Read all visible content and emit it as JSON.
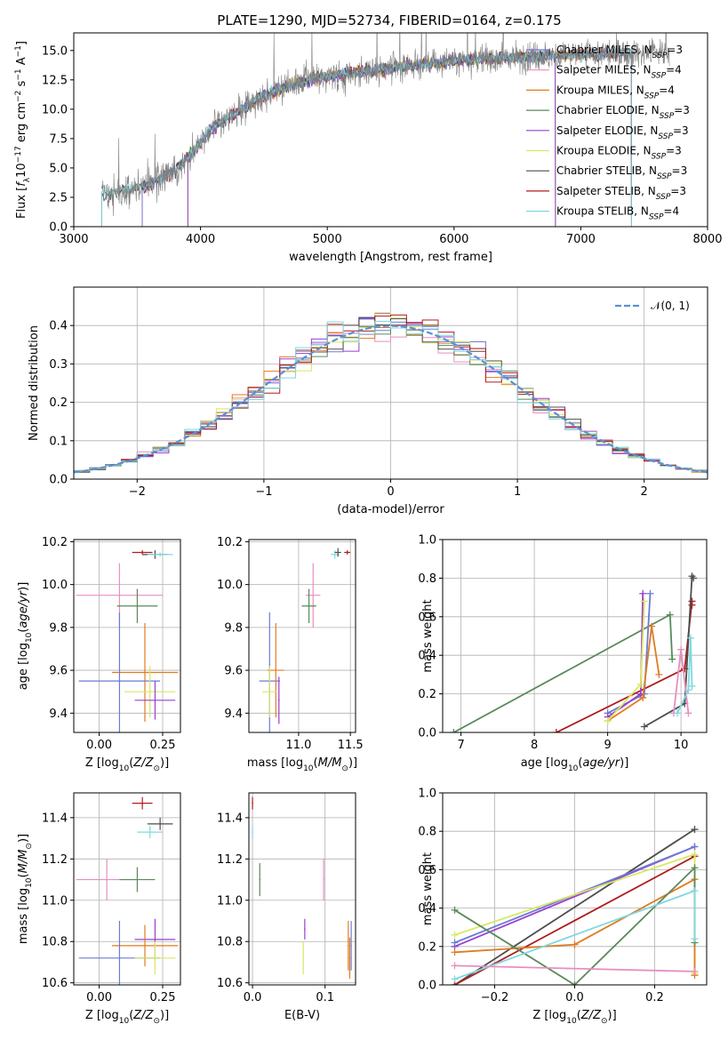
{
  "figure": {
    "title": "PLATE=1290, MJD=52734, FIBERID=0164, z=0.175"
  },
  "colors": {
    "Chabrier MILES": "#6a7bd6",
    "Salpeter MILES": "#e88ec0",
    "Kroupa MILES": "#e07b20",
    "Chabrier ELODIE": "#5a8a5a",
    "Salpeter ELODIE": "#9a3fcf",
    "Kroupa ELODIE": "#d8e860",
    "Chabrier STELIB": "#4d4d4d",
    "Salpeter STELIB": "#b01c1c",
    "Kroupa STELIB": "#7fd8e0",
    "data": "#808080",
    "normal_curve": "#5b8fd6",
    "grid": "#b0b0b0"
  },
  "chart_data": [
    {
      "id": "spectrum",
      "type": "line",
      "title": "PLATE=1290, MJD=52734, FIBERID=0164, z=0.175",
      "xlabel": "wavelength [Angstrom, rest frame]",
      "ylabel": "Flux [f_λ 10^-17 erg cm^-2 s^-1 A^-1]",
      "xlim": [
        3000,
        8000
      ],
      "ylim": [
        0,
        16.5
      ],
      "xticks": [
        3000,
        4000,
        5000,
        6000,
        7000,
        8000
      ],
      "yticks": [
        0.0,
        2.5,
        5.0,
        7.5,
        10.0,
        12.5,
        15.0
      ],
      "ytick_labels": [
        "0.0",
        "2.5",
        "5.0",
        "7.5",
        "10.0",
        "12.5",
        "15.0"
      ],
      "grid": false,
      "legend_position": "top-right",
      "legend": [
        {
          "sps": "Chabrier MILES",
          "n": "3"
        },
        {
          "sps": "Salpeter MILES",
          "n": "4"
        },
        {
          "sps": "Kroupa MILES",
          "n": "4"
        },
        {
          "sps": "Chabrier ELODIE",
          "n": "3"
        },
        {
          "sps": "Salpeter ELODIE",
          "n": "3"
        },
        {
          "sps": "Kroupa ELODIE",
          "n": "3"
        },
        {
          "sps": "Chabrier STELIB",
          "n": "3"
        },
        {
          "sps": "Salpeter STELIB",
          "n": "3"
        },
        {
          "sps": "Kroupa STELIB",
          "n": "4"
        }
      ],
      "continuum": {
        "x": [
          3220,
          3400,
          3600,
          3800,
          3950,
          4100,
          4300,
          4500,
          4700,
          4900,
          5100,
          5300,
          5500,
          5700,
          5900,
          6100,
          6300,
          6500,
          6700,
          6900,
          7100,
          7300,
          7500,
          7700
        ],
        "y": [
          2.8,
          3.0,
          3.6,
          4.8,
          6.5,
          8.5,
          9.8,
          11.2,
          12.0,
          12.6,
          13.0,
          13.2,
          13.5,
          13.8,
          14.0,
          14.2,
          14.3,
          14.4,
          14.5,
          14.6,
          14.7,
          14.8,
          14.8,
          14.9
        ]
      },
      "model_ranges": {
        "Salpeter MILES": [
          3540,
          7400
        ],
        "Kroupa MILES": [
          3540,
          7400
        ],
        "Salpeter STELIB": [
          3540,
          7400
        ],
        "Kroupa ELODIE": [
          3900,
          6800
        ],
        "Chabrier ELODIE": [
          3900,
          6800
        ],
        "Salpeter ELODIE": [
          3900,
          6800
        ],
        "Chabrier MILES": [
          3540,
          7400
        ],
        "Chabrier STELIB": [
          3220,
          7400
        ],
        "Kroupa STELIB": [
          3220,
          7400
        ]
      }
    },
    {
      "id": "residuals",
      "type": "area",
      "xlabel": "(data-model)/error",
      "ylabel": "Normed distribution",
      "xlim": [
        -2.5,
        2.5
      ],
      "ylim": [
        0,
        0.5
      ],
      "xticks": [
        -2,
        -1,
        0,
        1,
        2
      ],
      "xtick_labels": [
        "−2",
        "−1",
        "0",
        "1",
        "2"
      ],
      "yticks": [
        0.0,
        0.1,
        0.2,
        0.3,
        0.4
      ],
      "grid": true,
      "legend_position": "top-right",
      "legend": [
        {
          "name": "𝒩(0, 1)"
        }
      ],
      "bins": 40,
      "normal": {
        "mean": 0,
        "sigma": 1
      }
    },
    {
      "id": "age_Z",
      "type": "scatter",
      "xlabel": "Z [log10(Z/Z⊙)]",
      "ylabel": "age [log10(age/yr)]",
      "xlim": [
        -0.1,
        0.32
      ],
      "ylim": [
        9.31,
        10.21
      ],
      "xticks": [
        0.0,
        0.25
      ],
      "xtick_labels": [
        "0.00",
        "0.25"
      ],
      "yticks": [
        9.4,
        9.6,
        9.8,
        10.0,
        10.2
      ],
      "grid": true,
      "points": [
        {
          "sps": "Salpeter STELIB",
          "x": 0.17,
          "y": 10.15,
          "xerr": 0.04,
          "yerr": 0.01
        },
        {
          "sps": "Chabrier STELIB",
          "x": 0.22,
          "y": 10.14,
          "xerr": 0.05,
          "yerr": 0.02
        },
        {
          "sps": "Kroupa STELIB",
          "x": 0.24,
          "y": 10.14,
          "xerr": 0.05,
          "yerr": 0.01
        },
        {
          "sps": "Salpeter MILES",
          "x": 0.08,
          "y": 9.95,
          "xerr": 0.17,
          "yerr": 0.15
        },
        {
          "sps": "Chabrier ELODIE",
          "x": 0.15,
          "y": 9.9,
          "xerr": 0.08,
          "yerr": 0.08
        },
        {
          "sps": "Kroupa MILES",
          "x": 0.18,
          "y": 9.59,
          "xerr": 0.13,
          "yerr": 0.23
        },
        {
          "sps": "Chabrier MILES",
          "x": 0.08,
          "y": 9.55,
          "xerr": 0.16,
          "yerr": 0.32
        },
        {
          "sps": "Kroupa ELODIE",
          "x": 0.2,
          "y": 9.5,
          "xerr": 0.1,
          "yerr": 0.12
        },
        {
          "sps": "Salpeter ELODIE",
          "x": 0.22,
          "y": 9.46,
          "xerr": 0.08,
          "yerr": 0.09
        }
      ]
    },
    {
      "id": "age_mass",
      "type": "scatter",
      "xlabel": "mass [log10(M/M⊙)]",
      "ylabel": "",
      "xlim": [
        10.52,
        11.55
      ],
      "ylim": [
        9.31,
        10.21
      ],
      "xticks": [
        11.0,
        11.5
      ],
      "xtick_labels": [
        "11.0",
        "11.5"
      ],
      "yticks": [
        9.4,
        9.6,
        9.8,
        10.0,
        10.2
      ],
      "grid": true,
      "points": [
        {
          "sps": "Kroupa STELIB",
          "x": 11.35,
          "y": 10.14,
          "xerr": 0.04,
          "yerr": 0.02
        },
        {
          "sps": "Chabrier STELIB",
          "x": 11.38,
          "y": 10.15,
          "xerr": 0.03,
          "yerr": 0.02
        },
        {
          "sps": "Salpeter STELIB",
          "x": 11.47,
          "y": 10.15,
          "xerr": 0.03,
          "yerr": 0.01
        },
        {
          "sps": "Salpeter MILES",
          "x": 11.14,
          "y": 9.95,
          "xerr": 0.07,
          "yerr": 0.15
        },
        {
          "sps": "Chabrier ELODIE",
          "x": 11.1,
          "y": 9.9,
          "xerr": 0.07,
          "yerr": 0.08
        },
        {
          "sps": "Chabrier MILES",
          "x": 10.72,
          "y": 9.55,
          "xerr": 0.1,
          "yerr": 0.32
        },
        {
          "sps": "Kroupa MILES",
          "x": 10.78,
          "y": 9.6,
          "xerr": 0.08,
          "yerr": 0.22
        },
        {
          "sps": "Kroupa ELODIE",
          "x": 10.72,
          "y": 9.5,
          "xerr": 0.07,
          "yerr": 0.12
        },
        {
          "sps": "Salpeter ELODIE",
          "x": 10.81,
          "y": 9.46,
          "xerr": 0.0,
          "yerr": 0.11
        }
      ]
    },
    {
      "id": "weight_age",
      "type": "line",
      "xlabel": "age [log10(age/yr)]",
      "ylabel": "mass weight",
      "xlim": [
        6.75,
        10.35
      ],
      "ylim": [
        0,
        1.0
      ],
      "xticks": [
        7,
        8,
        9,
        10
      ],
      "yticks": [
        0.0,
        0.2,
        0.4,
        0.6,
        0.8,
        1.0
      ],
      "grid": true,
      "series": [
        {
          "sps": "Chabrier ELODIE",
          "x": [
            6.9,
            9.85,
            9.88
          ],
          "y": [
            0.0,
            0.61,
            0.38
          ]
        },
        {
          "sps": "Salpeter STELIB",
          "x": [
            8.3,
            10.05,
            10.15,
            10.15
          ],
          "y": [
            0.0,
            0.33,
            0.68,
            0.66
          ]
        },
        {
          "sps": "Chabrier STELIB",
          "x": [
            9.5,
            10.05,
            10.15,
            10.17
          ],
          "y": [
            0.03,
            0.15,
            0.81,
            0.8
          ]
        },
        {
          "sps": "Chabrier MILES",
          "x": [
            9.0,
            9.5,
            9.58
          ],
          "y": [
            0.1,
            0.2,
            0.72
          ]
        },
        {
          "sps": "Salpeter ELODIE",
          "x": [
            9.0,
            9.45,
            9.48
          ],
          "y": [
            0.08,
            0.2,
            0.72
          ]
        },
        {
          "sps": "Kroupa MILES",
          "x": [
            9.0,
            9.48,
            9.6,
            9.7
          ],
          "y": [
            0.06,
            0.18,
            0.55,
            0.3
          ]
        },
        {
          "sps": "Kroupa ELODIE",
          "x": [
            9.0,
            9.45,
            9.5
          ],
          "y": [
            0.06,
            0.25,
            0.68
          ]
        },
        {
          "sps": "Salpeter MILES",
          "x": [
            9.9,
            10.0,
            10.1
          ],
          "y": [
            0.1,
            0.43,
            0.1
          ]
        },
        {
          "sps": "Kroupa STELIB",
          "x": [
            9.95,
            10.1,
            10.13,
            10.15
          ],
          "y": [
            0.1,
            0.22,
            0.49,
            0.24
          ]
        }
      ]
    },
    {
      "id": "mass_Z",
      "type": "scatter",
      "xlabel": "Z [log10(Z/Z⊙)]",
      "ylabel": "mass [log10(M/M⊙)]",
      "xlim": [
        -0.1,
        0.32
      ],
      "ylim": [
        10.59,
        11.52
      ],
      "xticks": [
        0.0,
        0.25
      ],
      "xtick_labels": [
        "0.00",
        "0.25"
      ],
      "yticks": [
        10.6,
        10.8,
        11.0,
        11.2,
        11.4
      ],
      "grid": true,
      "points": [
        {
          "sps": "Salpeter STELIB",
          "x": 0.17,
          "y": 11.47,
          "xerr": 0.04,
          "yerr": 0.03
        },
        {
          "sps": "Chabrier STELIB",
          "x": 0.24,
          "y": 11.37,
          "xerr": 0.05,
          "yerr": 0.03
        },
        {
          "sps": "Kroupa STELIB",
          "x": 0.2,
          "y": 11.33,
          "xerr": 0.05,
          "yerr": 0.03
        },
        {
          "sps": "Salpeter MILES",
          "x": 0.03,
          "y": 11.1,
          "xerr": 0.12,
          "yerr": 0.1
        },
        {
          "sps": "Chabrier ELODIE",
          "x": 0.15,
          "y": 11.1,
          "xerr": 0.07,
          "yerr": 0.06
        },
        {
          "sps": "Salpeter ELODIE",
          "x": 0.22,
          "y": 10.81,
          "xerr": 0.08,
          "yerr": 0.1
        },
        {
          "sps": "Kroupa MILES",
          "x": 0.18,
          "y": 10.78,
          "xerr": 0.13,
          "yerr": 0.1
        },
        {
          "sps": "Chabrier MILES",
          "x": 0.08,
          "y": 10.72,
          "xerr": 0.16,
          "yerr": 0.18
        },
        {
          "sps": "Kroupa ELODIE",
          "x": 0.22,
          "y": 10.72,
          "xerr": 0.08,
          "yerr": 0.08
        }
      ]
    },
    {
      "id": "mass_ebv",
      "type": "scatter",
      "xlabel": "E(B-V)",
      "ylabel": "",
      "xlim": [
        -0.005,
        0.142
      ],
      "ylim": [
        10.59,
        11.52
      ],
      "xticks": [
        0.0,
        0.1
      ],
      "xtick_labels": [
        "0.0",
        "0.1"
      ],
      "yticks": [
        10.6,
        10.8,
        11.0,
        11.2,
        11.4
      ],
      "grid": true,
      "points": [
        {
          "sps": "Salpeter STELIB",
          "x": 0.0,
          "y": 11.47,
          "xerr": 0.0,
          "yerr": 0.03
        },
        {
          "sps": "Kroupa STELIB",
          "x": 0.0,
          "y": 11.33,
          "xerr": 0.0,
          "yerr": 0.03
        },
        {
          "sps": "Chabrier ELODIE",
          "x": 0.01,
          "y": 11.1,
          "xerr": 0.0,
          "yerr": 0.08
        },
        {
          "sps": "Salpeter MILES",
          "x": 0.098,
          "y": 11.1,
          "xerr": 0.0,
          "yerr": 0.1
        },
        {
          "sps": "Salpeter ELODIE",
          "x": 0.072,
          "y": 10.86,
          "xerr": 0.0,
          "yerr": 0.05
        },
        {
          "sps": "Kroupa ELODIE",
          "x": 0.07,
          "y": 10.72,
          "xerr": 0.0,
          "yerr": 0.08
        },
        {
          "sps": "Kroupa MILES",
          "x": 0.132,
          "y": 10.78,
          "xerr": 0.0,
          "yerr": 0.12
        },
        {
          "sps": "Chabrier MILES",
          "x": 0.136,
          "y": 10.78,
          "xerr": 0.0,
          "yerr": 0.12
        },
        {
          "sps": "Kroupa MILES",
          "x": 0.134,
          "y": 10.72,
          "xerr": 0.0,
          "yerr": 0.1
        }
      ]
    },
    {
      "id": "weight_Z",
      "type": "line",
      "xlabel": "Z [log10(Z/Z⊙)]",
      "ylabel": "mass weight",
      "xlim": [
        -0.33,
        0.33
      ],
      "ylim": [
        0,
        1.0
      ],
      "xticks": [
        -0.2,
        0.0,
        0.2
      ],
      "xtick_labels": [
        "−0.2",
        "0.0",
        "0.2"
      ],
      "yticks": [
        0.0,
        0.2,
        0.4,
        0.6,
        0.8,
        1.0
      ],
      "grid": true,
      "series": [
        {
          "sps": "Chabrier STELIB",
          "x": [
            -0.3,
            0.3
          ],
          "y": [
            0.0,
            0.81
          ]
        },
        {
          "sps": "Salpeter STELIB",
          "x": [
            -0.3,
            0.3
          ],
          "y": [
            0.0,
            0.67
          ]
        },
        {
          "sps": "Salpeter ELODIE",
          "x": [
            -0.3,
            0.3
          ],
          "y": [
            0.2,
            0.72
          ]
        },
        {
          "sps": "Chabrier MILES",
          "x": [
            -0.3,
            0.3
          ],
          "y": [
            0.22,
            0.72
          ]
        },
        {
          "sps": "Kroupa ELODIE",
          "x": [
            -0.3,
            0.3,
            0.3
          ],
          "y": [
            0.26,
            0.68,
            0.06
          ]
        },
        {
          "sps": "Kroupa MILES",
          "x": [
            -0.3,
            0.0,
            0.3,
            0.3
          ],
          "y": [
            0.17,
            0.21,
            0.55,
            0.05
          ]
        },
        {
          "sps": "Chabrier ELODIE",
          "x": [
            -0.3,
            0.0,
            0.3,
            0.3
          ],
          "y": [
            0.39,
            0.0,
            0.61,
            0.22
          ]
        },
        {
          "sps": "Kroupa STELIB",
          "x": [
            -0.3,
            0.3,
            0.3
          ],
          "y": [
            0.03,
            0.49,
            0.24
          ]
        },
        {
          "sps": "Salpeter MILES",
          "x": [
            -0.3,
            0.3
          ],
          "y": [
            0.1,
            0.07
          ]
        }
      ]
    }
  ]
}
